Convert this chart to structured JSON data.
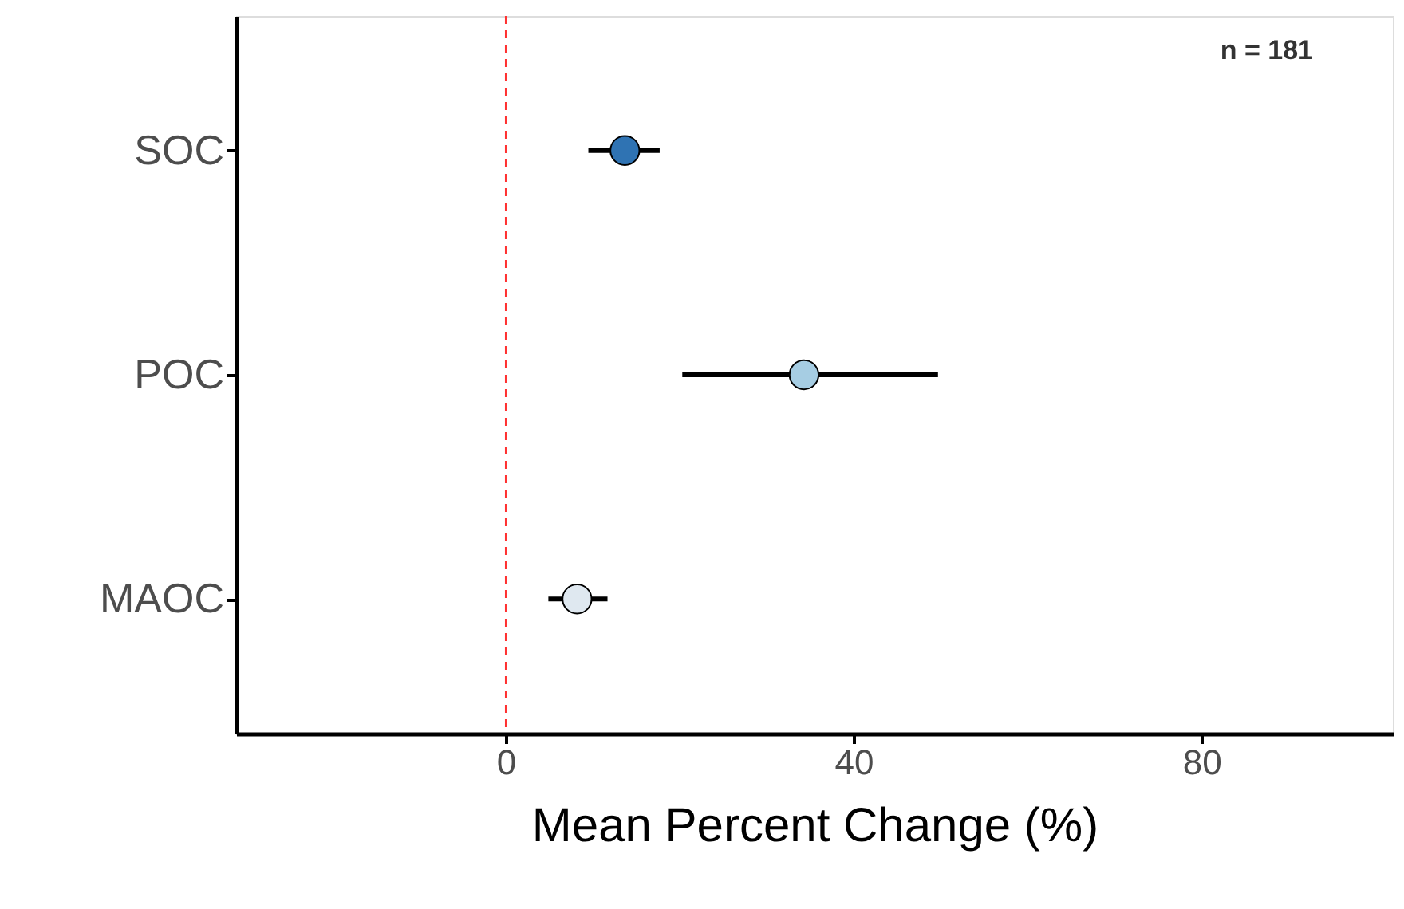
{
  "chart_data": {
    "type": "scatter",
    "orientation": "horizontal",
    "xlabel": "Mean Percent Change (%)",
    "categories": [
      "SOC",
      "POC",
      "MAOC"
    ],
    "values": [
      13.7,
      34.3,
      8.2
    ],
    "errors": [
      [
        9.5,
        17.7
      ],
      [
        20.3,
        49.7
      ],
      [
        4.9,
        11.7
      ]
    ],
    "colors": [
      "#2f73b3",
      "#a6cde3",
      "#dfe8f0"
    ],
    "xlim": [
      -31,
      102
    ],
    "xticks": [
      0,
      40,
      80
    ],
    "ref_lines": [
      {
        "axis": "x",
        "value": 0,
        "color": "#ff3030",
        "line_style": "dashed"
      }
    ],
    "annotations": [
      "n = 181"
    ],
    "grid": false,
    "marker": "circle"
  }
}
